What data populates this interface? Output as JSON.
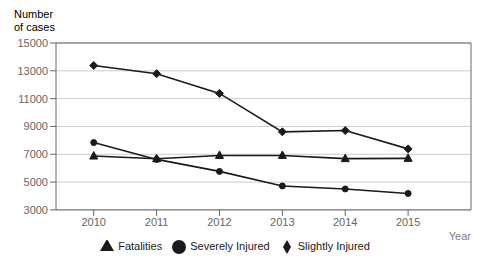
{
  "chart_data": {
    "type": "line",
    "x": [
      2010,
      2011,
      2012,
      2013,
      2014,
      2015
    ],
    "x_label": "Year",
    "y_label": "Number\nof cases",
    "xlim": [
      2009.4,
      2016.0
    ],
    "xticks": [
      2010,
      2011,
      2012,
      2013,
      2014,
      2015
    ],
    "ylim": [
      3000,
      15000
    ],
    "yticks": [
      3000,
      5000,
      7000,
      9000,
      11000,
      13000,
      15000
    ],
    "grid": true,
    "legend": "bottom",
    "series": [
      {
        "name": "Slightly Injured",
        "color": "#1a1a1a",
        "marker": "diamond",
        "values": [
          13380,
          12793,
          11376,
          8614,
          8705,
          7387
        ]
      },
      {
        "name": "Severely Injured",
        "color": "#1a1a1a",
        "marker": "circle",
        "values": [
          7839,
          6631,
          5768,
          4723,
          4507,
          4182
        ]
      },
      {
        "name": "Fatalities",
        "color": "#1a1a1a",
        "marker": "triangle",
        "values": [
          6872,
          6674,
          6917,
          6915,
          6686,
          6706
        ]
      }
    ]
  }
}
